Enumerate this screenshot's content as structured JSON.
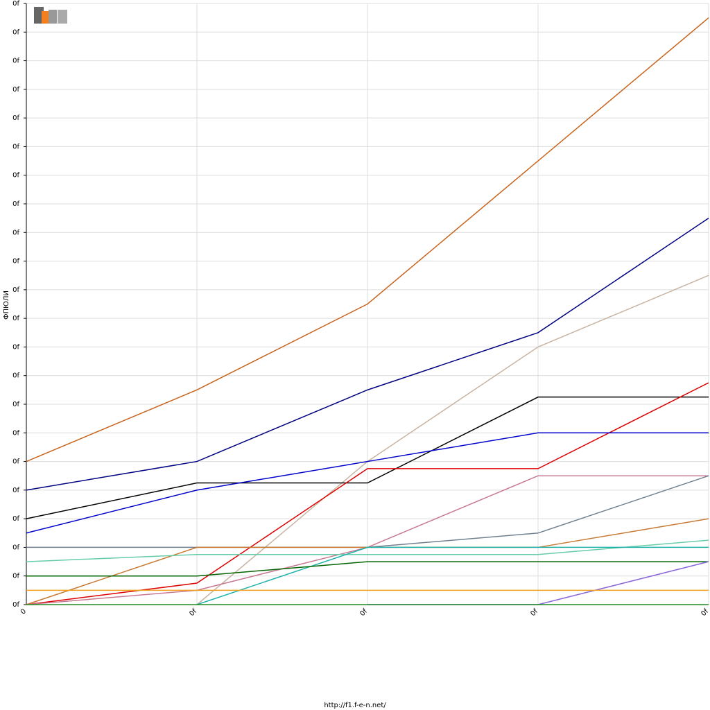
{
  "chart_data": {
    "type": "line",
    "y_label": "ФПЮЛИ",
    "footer": "http://f1.f-e-n.net/",
    "x": [
      0,
      1,
      2,
      3,
      4
    ],
    "xlim": [
      0,
      4
    ],
    "xticks": [
      0,
      {
        "value": 1,
        "label": "0f"
      },
      {
        "value": 2,
        "label": "0f"
      },
      {
        "value": 3,
        "label": "0f"
      },
      {
        "value": 4,
        "label": "0f"
      }
    ],
    "ylim": [
      0,
      21
    ],
    "yticks": [
      {
        "value": 0,
        "label": "0f"
      },
      {
        "value": 1,
        "label": "0f"
      },
      {
        "value": 2,
        "label": "0f"
      },
      {
        "value": 3,
        "label": "0f"
      },
      {
        "value": 4,
        "label": "0f"
      },
      {
        "value": 5,
        "label": "0f"
      },
      {
        "value": 6,
        "label": "0f"
      },
      {
        "value": 7,
        "label": "0f"
      },
      {
        "value": 8,
        "label": "0f"
      },
      {
        "value": 9,
        "label": "0f"
      },
      {
        "value": 10,
        "label": "0f"
      },
      {
        "value": 11,
        "label": "0f"
      },
      {
        "value": 12,
        "label": "0f"
      },
      {
        "value": 13,
        "label": "0f"
      },
      {
        "value": 14,
        "label": "0f"
      },
      {
        "value": 15,
        "label": "0f"
      },
      {
        "value": 16,
        "label": "0f"
      },
      {
        "value": 17,
        "label": "0f"
      },
      {
        "value": 18,
        "label": "0f"
      },
      {
        "value": 19,
        "label": "0f"
      },
      {
        "value": 20,
        "label": "0f"
      },
      {
        "value": 21,
        "label": "0f"
      }
    ],
    "grid": true,
    "series": [
      {
        "color": "#c8641e",
        "values": [
          5,
          7.5,
          10.5,
          15.5,
          20.5
        ]
      },
      {
        "color": "#000080",
        "values": [
          4,
          5,
          7.5,
          9.5,
          13.5
        ]
      },
      {
        "color": "#c8b4a0",
        "values": [
          null,
          0,
          5,
          9,
          11.5
        ]
      },
      {
        "color": "#000000",
        "values": [
          3,
          4.25,
          4.25,
          7.25,
          7.25
        ]
      },
      {
        "color": "#dd0000",
        "values": [
          0,
          0.75,
          4.75,
          4.75,
          7.75
        ]
      },
      {
        "color": "#0000cc",
        "values": [
          2.5,
          4,
          5,
          6,
          6
        ]
      },
      {
        "color": "#c87890",
        "values": [
          0,
          0.5,
          2,
          4.5,
          4.5
        ]
      },
      {
        "color": "#708090",
        "values": [
          2,
          2,
          2,
          2.5,
          4.5
        ]
      },
      {
        "color": "#c87832",
        "values": [
          0,
          2,
          2,
          2,
          3
        ]
      },
      {
        "color": "#66ccaa",
        "values": [
          1.5,
          1.75,
          1.75,
          1.75,
          2.25
        ]
      },
      {
        "color": "#20b2aa",
        "values": [
          null,
          0,
          2,
          2,
          2
        ]
      },
      {
        "color": "#006400",
        "values": [
          1,
          1,
          1.5,
          1.5,
          1.5
        ]
      },
      {
        "color": "#8866dd",
        "values": [
          null,
          null,
          0,
          0,
          1.5
        ]
      },
      {
        "color": "#f0a020",
        "values": [
          0.5,
          0.5,
          0.5,
          0.5,
          0.5
        ]
      },
      {
        "color": "#228b22",
        "values": [
          0,
          0,
          0,
          0,
          0
        ]
      }
    ]
  }
}
